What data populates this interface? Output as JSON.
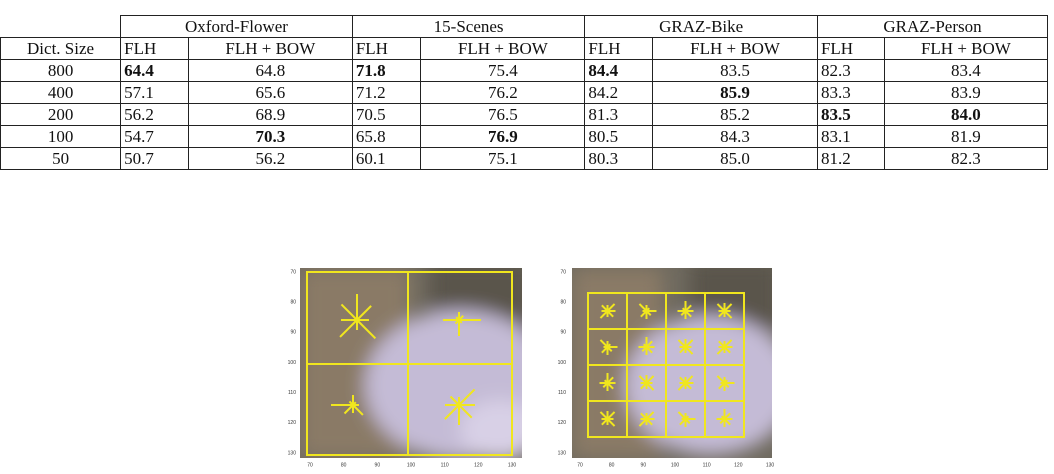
{
  "table": {
    "groups": [
      "Oxford-Flower",
      "15-Scenes",
      "GRAZ-Bike",
      "GRAZ-Person"
    ],
    "subheaders": [
      "Dict. Size",
      "FLH",
      "FLH + BOW",
      "FLH",
      "FLH + BOW",
      "FLH",
      "FLH + BOW",
      "FLH",
      "FLH + BOW"
    ],
    "rows": [
      [
        "800",
        {
          "text": "64.4",
          "bold": true
        },
        "64.8",
        {
          "text": "71.8",
          "bold": true
        },
        "75.4",
        {
          "text": "84.4",
          "bold": true
        },
        "83.5",
        "82.3",
        "83.4"
      ],
      [
        "400",
        "57.1",
        "65.6",
        "71.2",
        "76.2",
        "84.2",
        {
          "text": "85.9",
          "bold": true
        },
        "83.3",
        "83.9"
      ],
      [
        "200",
        "56.2",
        "68.9",
        "70.5",
        "76.5",
        "81.3",
        "85.2",
        {
          "text": "83.5",
          "bold": true
        },
        {
          "text": "84.0",
          "bold": true
        }
      ],
      [
        "100",
        "54.7",
        {
          "text": "70.3",
          "bold": true
        },
        "65.8",
        {
          "text": "76.9",
          "bold": true
        },
        "80.5",
        "84.3",
        "83.1",
        "81.9"
      ],
      [
        "50",
        "50.7",
        "56.2",
        "60.1",
        "75.1",
        "80.3",
        "85.0",
        "81.2",
        "82.3"
      ]
    ]
  },
  "figure": {
    "left": {
      "x_ticks": [
        70,
        80,
        90,
        100,
        110,
        120,
        130
      ],
      "y_ticks": [
        70,
        80,
        90,
        100,
        110,
        120,
        130
      ]
    },
    "right": {
      "x_ticks": [
        70,
        80,
        90,
        100,
        110,
        120,
        130
      ],
      "y_ticks": [
        70,
        80,
        90,
        100,
        110,
        120,
        130
      ]
    }
  }
}
